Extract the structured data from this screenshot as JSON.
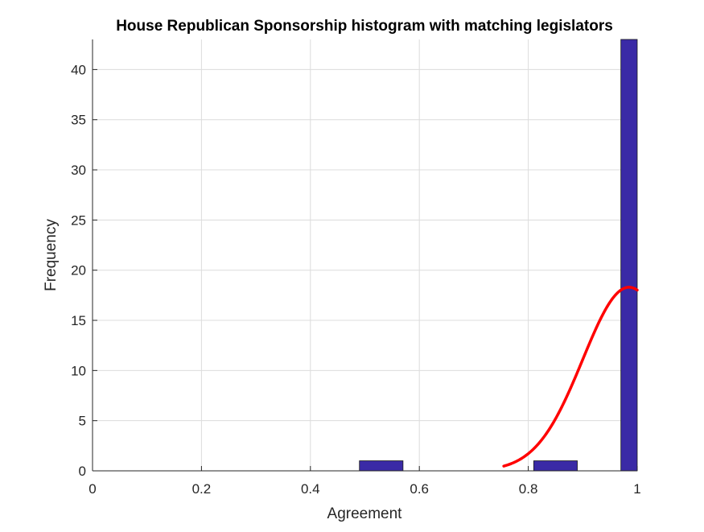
{
  "chart_data": {
    "type": "bar",
    "title": "House Republican Sponsorship histogram with matching legislators",
    "xlabel": "Agreement",
    "ylabel": "Frequency",
    "xlim": [
      0,
      1
    ],
    "ylim": [
      0,
      43
    ],
    "grid": true,
    "xticks": [
      0,
      0.2,
      0.4,
      0.6,
      0.8,
      1
    ],
    "xtick_labels": [
      "0",
      "0.2",
      "0.4",
      "0.6",
      "0.8",
      "1"
    ],
    "yticks": [
      0,
      5,
      10,
      15,
      20,
      25,
      30,
      35,
      40
    ],
    "ytick_labels": [
      "0",
      "5",
      "10",
      "15",
      "20",
      "25",
      "30",
      "35",
      "40"
    ],
    "bars": [
      {
        "x0": 0.49,
        "x1": 0.57,
        "value": 1
      },
      {
        "x0": 0.81,
        "x1": 0.89,
        "value": 1
      },
      {
        "x0": 0.97,
        "x1": 1.0,
        "value": 43
      }
    ],
    "bar_color": "#3a2aa6",
    "bar_edge_color": "#1a1a1a",
    "fit_curve": {
      "type": "normal",
      "color": "#ff0000",
      "x_start": 0.755,
      "x_end": 1.0,
      "mean": 0.985,
      "sigma": 0.085,
      "peak": 18.3
    }
  }
}
